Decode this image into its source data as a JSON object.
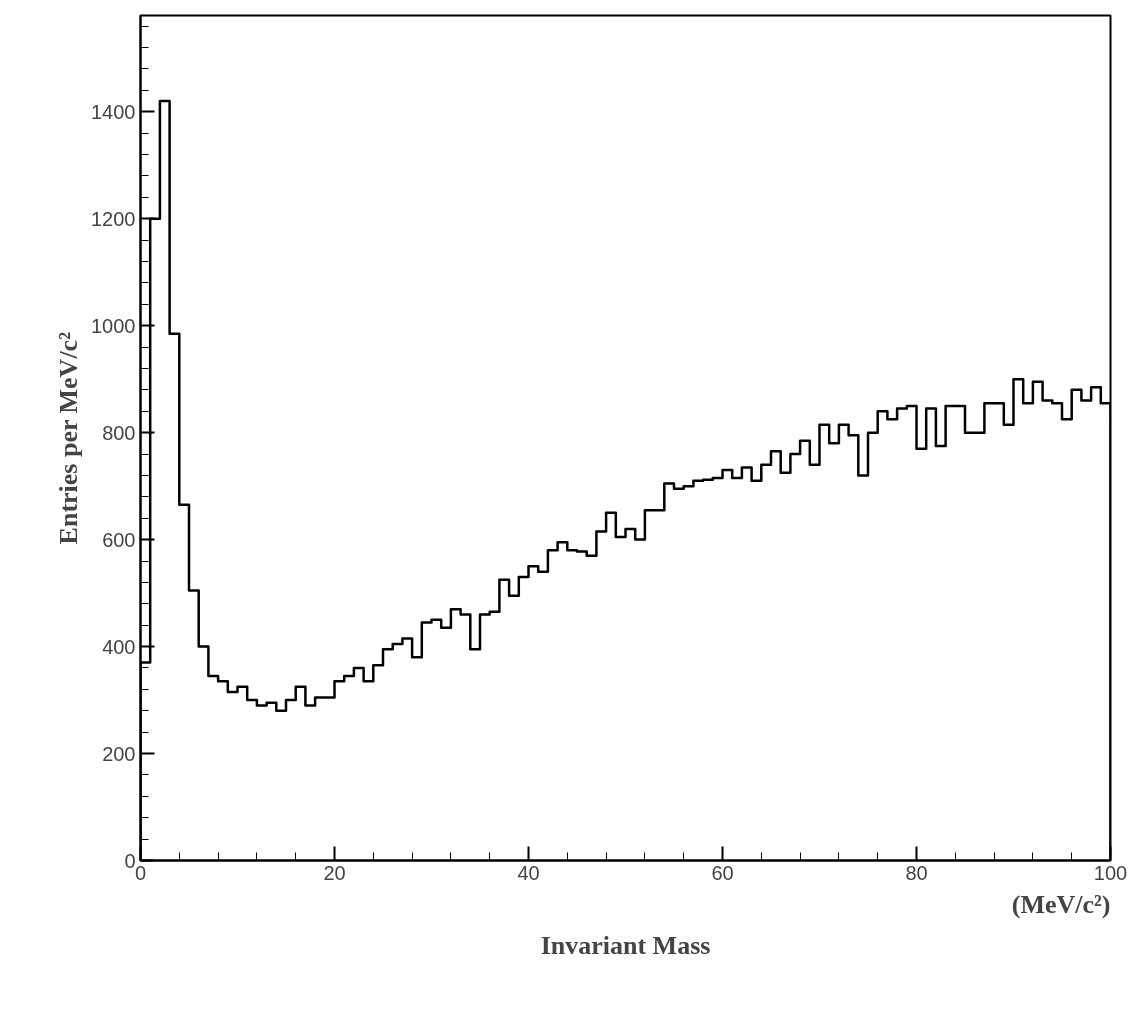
{
  "chart_data": {
    "type": "histogram",
    "xlabel": "Invariant Mass",
    "ylabel": "Entries per MeV/c²",
    "annotations": [
      "(MeV/c²)"
    ],
    "bins": [
      0,
      1,
      2,
      3,
      4,
      5,
      6,
      7,
      8,
      9,
      10,
      11,
      12,
      13,
      14,
      15,
      16,
      17,
      18,
      19,
      20,
      21,
      22,
      23,
      24,
      25,
      26,
      27,
      28,
      29,
      30,
      31,
      32,
      33,
      34,
      35,
      36,
      37,
      38,
      39,
      40,
      41,
      42,
      43,
      44,
      45,
      46,
      47,
      48,
      49,
      50,
      51,
      52,
      53,
      54,
      55,
      56,
      57,
      58,
      59,
      60,
      61,
      62,
      63,
      64,
      65,
      66,
      67,
      68,
      69,
      70,
      71,
      72,
      73,
      74,
      75,
      76,
      77,
      78,
      79,
      80,
      81,
      82,
      83,
      84,
      85,
      86,
      87,
      88,
      89,
      90,
      91,
      92,
      93,
      94,
      95,
      96,
      97,
      98,
      99,
      100
    ],
    "values": [
      370,
      1200,
      1420,
      985,
      665,
      505,
      400,
      345,
      335,
      315,
      325,
      300,
      290,
      295,
      280,
      300,
      325,
      290,
      305,
      305,
      335,
      345,
      360,
      335,
      365,
      395,
      405,
      415,
      380,
      445,
      450,
      435,
      470,
      460,
      395,
      460,
      465,
      525,
      495,
      530,
      550,
      540,
      580,
      595,
      580,
      578,
      570,
      615,
      650,
      605,
      620,
      600,
      655,
      655,
      705,
      695,
      700,
      710,
      712,
      715,
      730,
      715,
      735,
      710,
      740,
      765,
      725,
      760,
      785,
      740,
      815,
      780,
      815,
      795,
      720,
      800,
      840,
      825,
      845,
      850,
      770,
      845,
      775,
      850,
      850,
      800,
      800,
      855,
      855,
      815,
      900,
      855,
      895,
      860,
      855,
      825,
      880,
      860,
      885,
      855
    ],
    "color": "#000000",
    "xlim": [
      0,
      100
    ],
    "xticks": [
      0,
      {
        "value": 4,
        "label": null
      },
      {
        "value": 8,
        "label": null
      },
      {
        "value": 12,
        "label": null
      },
      {
        "value": 16,
        "label": null
      },
      20,
      {
        "value": 24,
        "label": null
      },
      {
        "value": 28,
        "label": null
      },
      {
        "value": 32,
        "label": null
      },
      {
        "value": 36,
        "label": null
      },
      40,
      {
        "value": 44,
        "label": null
      },
      {
        "value": 48,
        "label": null
      },
      {
        "value": 52,
        "label": null
      },
      {
        "value": 56,
        "label": null
      },
      60,
      {
        "value": 64,
        "label": null
      },
      {
        "value": 68,
        "label": null
      },
      {
        "value": 72,
        "label": null
      },
      {
        "value": 76,
        "label": null
      },
      80,
      {
        "value": 84,
        "label": null
      },
      {
        "value": 88,
        "label": null
      },
      {
        "value": 92,
        "label": null
      },
      {
        "value": 96,
        "label": null
      },
      100
    ],
    "ylim": [
      0,
      1580
    ],
    "yticks": [
      0,
      {
        "value": 40,
        "label": null
      },
      {
        "value": 80,
        "label": null
      },
      {
        "value": 120,
        "label": null
      },
      {
        "value": 160,
        "label": null
      },
      200,
      {
        "value": 240,
        "label": null
      },
      {
        "value": 280,
        "label": null
      },
      {
        "value": 320,
        "label": null
      },
      {
        "value": 360,
        "label": null
      },
      400,
      {
        "value": 440,
        "label": null
      },
      {
        "value": 480,
        "label": null
      },
      {
        "value": 520,
        "label": null
      },
      {
        "value": 560,
        "label": null
      },
      600,
      {
        "value": 640,
        "label": null
      },
      {
        "value": 680,
        "label": null
      },
      {
        "value": 720,
        "label": null
      },
      {
        "value": 760,
        "label": null
      },
      800,
      {
        "value": 840,
        "label": null
      },
      {
        "value": 880,
        "label": null
      },
      {
        "value": 920,
        "label": null
      },
      {
        "value": 960,
        "label": null
      },
      1000,
      {
        "value": 1040,
        "label": null
      },
      {
        "value": 1080,
        "label": null
      },
      {
        "value": 1120,
        "label": null
      },
      {
        "value": 1160,
        "label": null
      },
      1200,
      {
        "value": 1240,
        "label": null
      },
      {
        "value": 1280,
        "label": null
      },
      {
        "value": 1320,
        "label": null
      },
      {
        "value": 1360,
        "label": null
      },
      1400,
      {
        "value": 1440,
        "label": null
      },
      {
        "value": 1480,
        "label": null
      },
      {
        "value": 1520,
        "label": null
      },
      {
        "value": 1560,
        "label": null
      }
    ],
    "grid": false
  }
}
